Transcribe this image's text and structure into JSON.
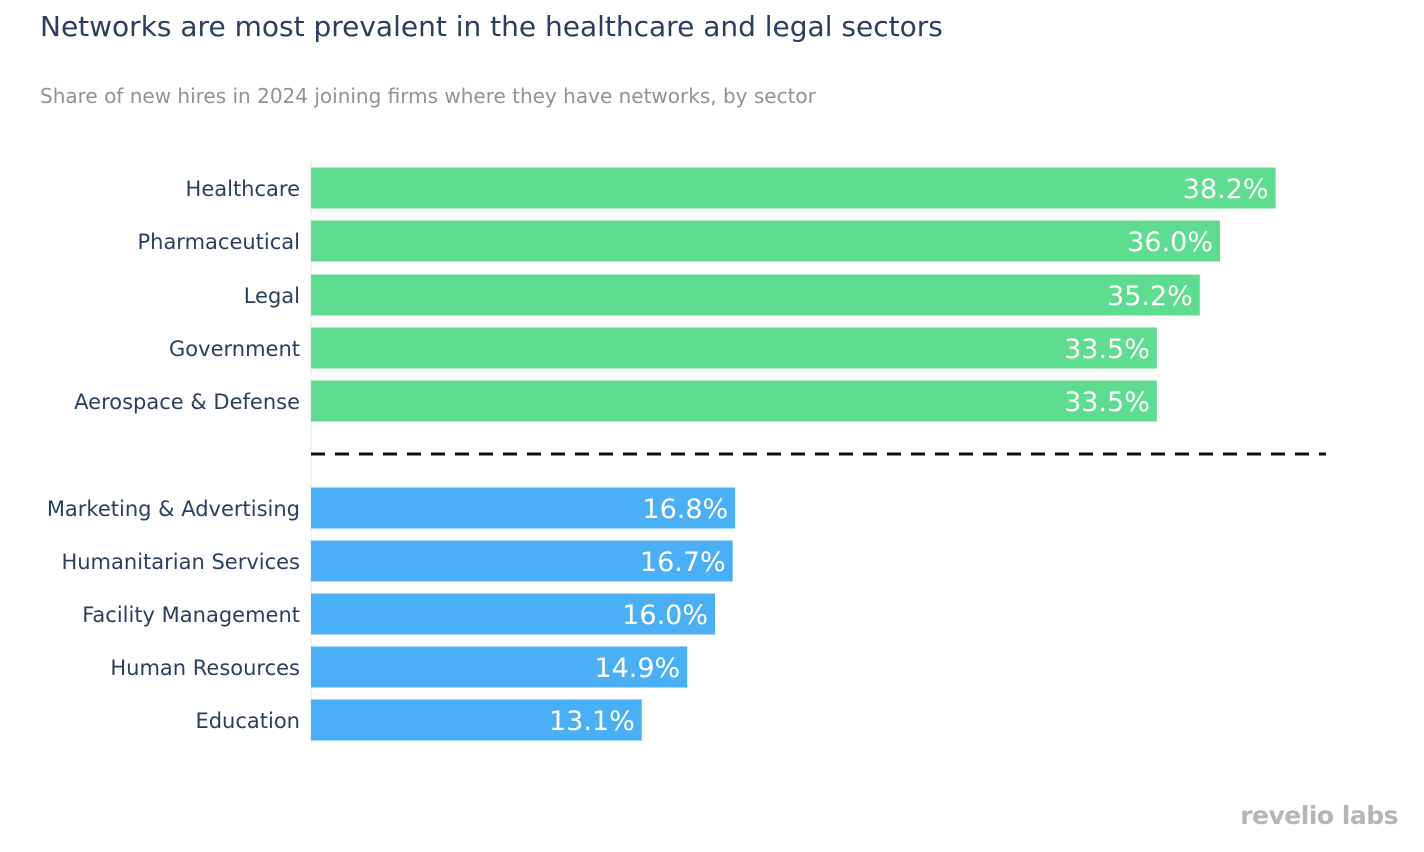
{
  "title": "Networks are most prevalent in the healthcare and legal sectors",
  "subtitle": "Share of new hires in 2024 joining firms where they have networks, by sector",
  "brand": "revelio labs",
  "colors": {
    "top": "#5edc90",
    "bottom": "#4aaff5",
    "divider": "#111111",
    "axis": "#e6e9ee"
  },
  "chart_data": {
    "type": "bar",
    "orientation": "horizontal",
    "title": "Networks are most prevalent in the healthcare and legal sectors",
    "subtitle": "Share of new hires in 2024 joining firms where they have networks, by sector",
    "xlim": [
      0,
      44
    ],
    "categories": [
      "Healthcare",
      "Pharmaceutical",
      "Legal",
      "Government",
      "Aerospace & Defense",
      "Marketing & Advertising",
      "Humanitarian Services",
      "Facility Management",
      "Human Resources",
      "Education"
    ],
    "values": [
      38.2,
      36.0,
      35.2,
      33.5,
      33.5,
      16.8,
      16.7,
      16.0,
      14.9,
      13.1
    ],
    "value_labels": [
      "38.2%",
      "36.0%",
      "35.2%",
      "33.5%",
      "33.5%",
      "16.8%",
      "16.7%",
      "16.0%",
      "14.9%",
      "13.1%"
    ],
    "groups": [
      {
        "name": "top",
        "start": 0,
        "end": 5
      },
      {
        "name": "bottom",
        "start": 5,
        "end": 10
      }
    ],
    "divider": "dashed line between top 5 and bottom 5 sectors"
  }
}
